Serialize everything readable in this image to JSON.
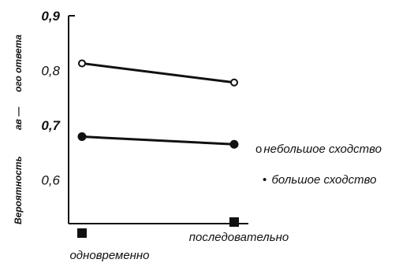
{
  "chart_data": {
    "type": "line",
    "categories": [
      "одновременно",
      "последовательно"
    ],
    "series": [
      {
        "name": "небольшое сходство",
        "values": [
          0.813,
          0.778
        ],
        "marker": "open-circle",
        "color": "#111111"
      },
      {
        "name": "большое сходство",
        "values": [
          0.679,
          0.665
        ],
        "marker": "filled-circle",
        "color": "#111111"
      }
    ],
    "ylim": [
      0.52,
      0.9
    ],
    "yticks": [
      {
        "value": 0.9,
        "label": "0,9"
      },
      {
        "value": 0.8,
        "label": "0,8"
      },
      {
        "value": 0.7,
        "label": "0,7"
      },
      {
        "value": 0.6,
        "label": "0,6"
      }
    ],
    "ylabel_parts": [
      "Вероятность",
      "ав —",
      "ого ответа"
    ],
    "legend": [
      {
        "marker_symbol": "o",
        "label": "небольшое сходство"
      },
      {
        "marker_symbol": "•",
        "label": "большое сходство"
      }
    ],
    "legend_position": "right",
    "grid": false
  }
}
